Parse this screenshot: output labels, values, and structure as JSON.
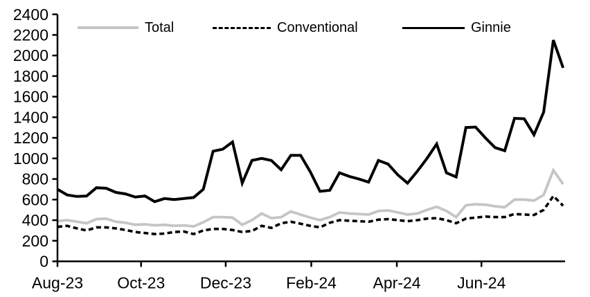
{
  "chart_data": {
    "type": "line",
    "title": "",
    "xlabel": "",
    "ylabel": "",
    "frequency": "weekly",
    "x_axis": {
      "tick_labels": [
        "Aug-23",
        "Oct-23",
        "Dec-23",
        "Feb-24",
        "Apr-24",
        "Jun-24"
      ],
      "tick_positions_weeks": [
        0,
        8.6,
        17.3,
        26.1,
        34.9,
        43.6
      ],
      "range_weeks": [
        0,
        52.2
      ]
    },
    "y_axis": {
      "min": 0,
      "max": 2400,
      "step": 200,
      "tick_labels": [
        "0",
        "200",
        "400",
        "600",
        "800",
        "1000",
        "1200",
        "1400",
        "1600",
        "1800",
        "2000",
        "2200",
        "2400"
      ]
    },
    "grid": false,
    "legend": {
      "position": "top",
      "items": [
        {
          "label": "Total",
          "color": "#c5c5c5",
          "style": "solid"
        },
        {
          "label": "Conventional",
          "color": "#000000",
          "style": "dashed"
        },
        {
          "label": "Ginnie",
          "color": "#000000",
          "style": "solid"
        }
      ]
    },
    "series": [
      {
        "name": "Total",
        "color": "#c5c5c5",
        "style": "solid",
        "values": [
          390,
          400,
          385,
          370,
          410,
          415,
          385,
          375,
          355,
          360,
          350,
          355,
          345,
          350,
          340,
          380,
          430,
          430,
          425,
          355,
          400,
          465,
          420,
          430,
          485,
          455,
          425,
          400,
          430,
          475,
          465,
          460,
          455,
          490,
          495,
          475,
          455,
          465,
          500,
          530,
          490,
          430,
          545,
          555,
          550,
          535,
          525,
          600,
          600,
          590,
          645,
          885,
          750
        ]
      },
      {
        "name": "Conventional",
        "color": "#000000",
        "style": "dashed",
        "values": [
          335,
          345,
          320,
          300,
          330,
          330,
          320,
          305,
          285,
          275,
          265,
          270,
          285,
          290,
          265,
          300,
          315,
          315,
          305,
          285,
          295,
          345,
          325,
          370,
          385,
          365,
          345,
          330,
          375,
          400,
          395,
          390,
          385,
          405,
          410,
          400,
          390,
          400,
          415,
          420,
          400,
          370,
          415,
          425,
          435,
          430,
          430,
          460,
          455,
          450,
          500,
          635,
          540
        ]
      },
      {
        "name": "Ginnie",
        "color": "#000000",
        "style": "solid",
        "values": [
          700,
          645,
          630,
          635,
          715,
          710,
          670,
          655,
          625,
          635,
          580,
          610,
          600,
          610,
          620,
          700,
          1070,
          1090,
          1160,
          760,
          980,
          1000,
          980,
          890,
          1030,
          1030,
          870,
          680,
          690,
          860,
          825,
          800,
          770,
          980,
          945,
          840,
          760,
          875,
          1000,
          1140,
          860,
          820,
          1300,
          1305,
          1200,
          1105,
          1075,
          1390,
          1385,
          1230,
          1450,
          2150,
          1880
        ]
      }
    ]
  }
}
